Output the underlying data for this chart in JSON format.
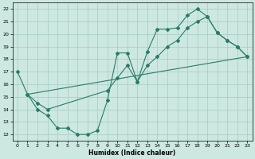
{
  "xlabel": "Humidex (Indice chaleur)",
  "bg_color": "#cce8e0",
  "grid_color": "#aacfc8",
  "line_color": "#2a7a6a",
  "xlim": [
    -0.5,
    23.5
  ],
  "ylim": [
    11.5,
    22.5
  ],
  "xticks": [
    0,
    1,
    2,
    3,
    4,
    5,
    6,
    7,
    8,
    9,
    10,
    11,
    12,
    13,
    14,
    15,
    16,
    17,
    18,
    19,
    20,
    21,
    22,
    23
  ],
  "yticks": [
    12,
    13,
    14,
    15,
    16,
    17,
    18,
    19,
    20,
    21,
    22
  ],
  "curve1_x": [
    0,
    1,
    2,
    3,
    4,
    5,
    6,
    7,
    8,
    9,
    10,
    11,
    12,
    13,
    14,
    15,
    16,
    17,
    18,
    19,
    20,
    21,
    22,
    23
  ],
  "curve1_y": [
    17.0,
    15.2,
    14.0,
    13.5,
    12.5,
    12.5,
    12.0,
    12.0,
    12.3,
    14.7,
    18.5,
    18.5,
    16.2,
    18.6,
    20.4,
    20.4,
    20.5,
    21.5,
    22.0,
    21.4,
    20.1,
    19.5,
    19.0,
    18.2
  ],
  "curve2_x": [
    1,
    23
  ],
  "curve2_y": [
    15.2,
    18.2
  ],
  "curve3_x": [
    1,
    2,
    3,
    9,
    10,
    11,
    12,
    13,
    14,
    15,
    16,
    17,
    18,
    19,
    20,
    21,
    22,
    23
  ],
  "curve3_y": [
    15.2,
    14.5,
    14.0,
    15.5,
    16.5,
    17.5,
    16.2,
    17.5,
    18.2,
    19.0,
    19.5,
    20.5,
    21.0,
    21.4,
    20.1,
    19.5,
    19.0,
    18.2
  ]
}
